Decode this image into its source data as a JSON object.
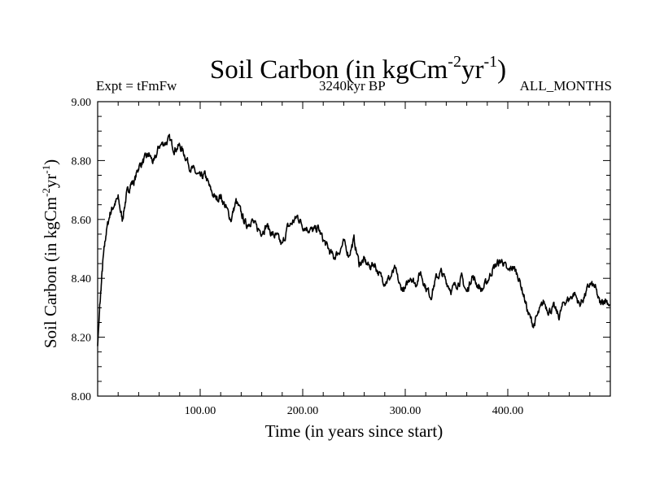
{
  "header": {
    "title_main": "Soil Carbon (in kgCm",
    "title_exp1": "-2",
    "title_mid": "yr",
    "title_exp2": "-1",
    "title_end": ")",
    "expt": "Expt = tFmFw",
    "period": "3240kyr BP",
    "months": "ALL_MONTHS"
  },
  "axes": {
    "ylabel_main": "Soil Carbon (in kgCm",
    "ylabel_exp1": "-2",
    "ylabel_mid": "yr",
    "ylabel_exp2": "-1",
    "ylabel_end": ")",
    "xlabel": "Time (in years since start)"
  },
  "chart_data": {
    "type": "line",
    "title": "Soil Carbon (in kgCm-2yr-1)",
    "xlabel": "Time (in years since start)",
    "ylabel": "Soil Carbon (in kgCm-2yr-1)",
    "xlim": [
      0,
      500
    ],
    "ylim": [
      8.0,
      9.0
    ],
    "x_ticks": [
      100,
      200,
      300,
      400
    ],
    "x_tick_labels": [
      "100.00",
      "200.00",
      "300.00",
      "400.00"
    ],
    "y_ticks": [
      8.0,
      8.2,
      8.4,
      8.6,
      8.8,
      9.0
    ],
    "y_tick_labels": [
      "8.00",
      "8.20",
      "8.40",
      "8.60",
      "8.80",
      "9.00"
    ],
    "series": [
      {
        "name": "Soil Carbon",
        "color": "#000000",
        "x": [
          0,
          2,
          5,
          8,
          12,
          16,
          20,
          24,
          28,
          32,
          36,
          40,
          45,
          50,
          55,
          60,
          65,
          70,
          75,
          80,
          85,
          90,
          95,
          100,
          105,
          110,
          115,
          120,
          125,
          130,
          135,
          140,
          145,
          150,
          155,
          160,
          165,
          170,
          175,
          180,
          185,
          190,
          195,
          200,
          205,
          210,
          215,
          220,
          225,
          230,
          235,
          240,
          245,
          250,
          255,
          260,
          265,
          270,
          275,
          280,
          285,
          290,
          295,
          300,
          305,
          310,
          315,
          320,
          325,
          330,
          335,
          340,
          345,
          350,
          355,
          360,
          365,
          370,
          375,
          380,
          385,
          390,
          395,
          400,
          405,
          410,
          415,
          420,
          425,
          430,
          435,
          440,
          445,
          450,
          455,
          460,
          465,
          470,
          475,
          480,
          485,
          490,
          495,
          500
        ],
        "values": [
          8.17,
          8.3,
          8.45,
          8.55,
          8.62,
          8.65,
          8.67,
          8.6,
          8.68,
          8.72,
          8.73,
          8.78,
          8.8,
          8.82,
          8.79,
          8.85,
          8.86,
          8.87,
          8.84,
          8.85,
          8.82,
          8.78,
          8.76,
          8.74,
          8.75,
          8.7,
          8.67,
          8.68,
          8.64,
          8.6,
          8.66,
          8.62,
          8.58,
          8.6,
          8.57,
          8.56,
          8.58,
          8.55,
          8.54,
          8.51,
          8.57,
          8.59,
          8.61,
          8.58,
          8.57,
          8.56,
          8.57,
          8.53,
          8.5,
          8.47,
          8.49,
          8.52,
          8.48,
          8.53,
          8.45,
          8.46,
          8.44,
          8.45,
          8.41,
          8.39,
          8.4,
          8.43,
          8.37,
          8.36,
          8.41,
          8.38,
          8.42,
          8.37,
          8.34,
          8.4,
          8.42,
          8.39,
          8.36,
          8.38,
          8.4,
          8.35,
          8.41,
          8.38,
          8.36,
          8.39,
          8.43,
          8.45,
          8.46,
          8.42,
          8.44,
          8.41,
          8.35,
          8.28,
          8.24,
          8.28,
          8.32,
          8.29,
          8.3,
          8.27,
          8.32,
          8.33,
          8.35,
          8.31,
          8.34,
          8.38,
          8.37,
          8.31,
          8.33,
          8.31
        ]
      }
    ]
  }
}
